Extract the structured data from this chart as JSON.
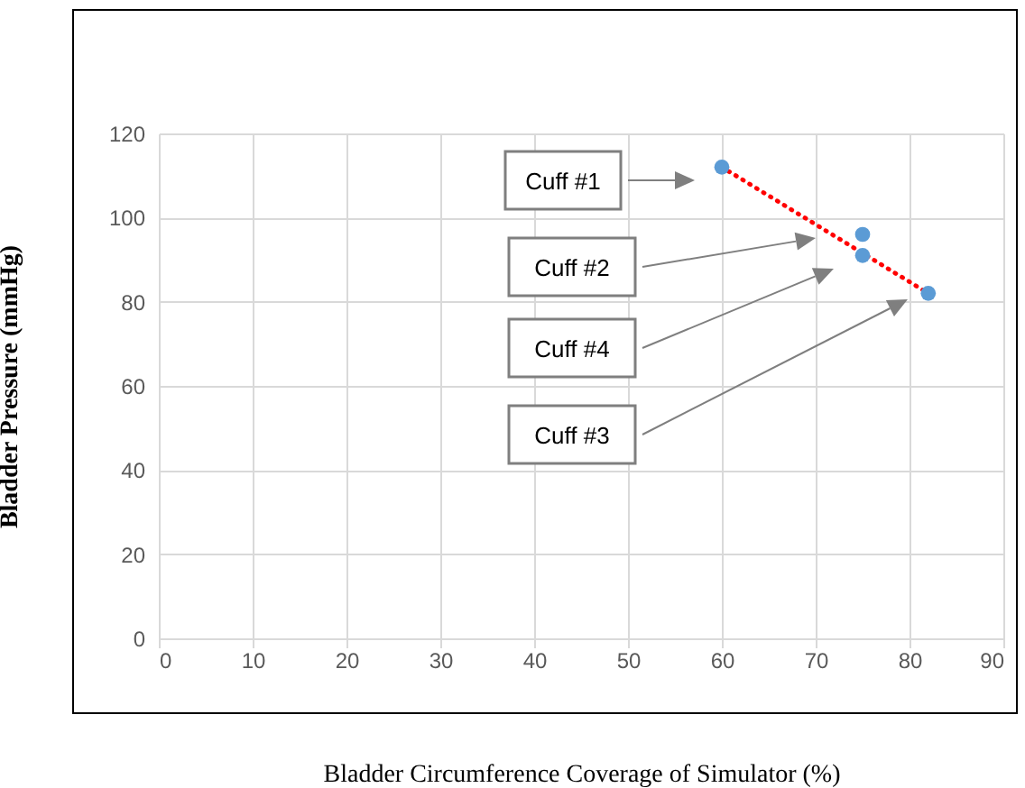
{
  "chart_data": {
    "type": "scatter",
    "xlabel": "Bladder Circumference Coverage of Simulator (%)",
    "ylabel": "Bladder Pressure (mmHg)",
    "xlim": [
      0,
      90
    ],
    "xticks": [
      0,
      10,
      20,
      30,
      40,
      50,
      60,
      70,
      80,
      90
    ],
    "ylim": [
      0,
      120
    ],
    "yticks": [
      0,
      20,
      40,
      60,
      80,
      100,
      120
    ],
    "grid": true,
    "series": [
      {
        "marker": "circle",
        "color": "#5b9bd5",
        "x": [
          60,
          75,
          75,
          82
        ],
        "values": [
          112,
          96,
          91,
          82
        ]
      },
      {
        "type": "line",
        "color": "#ff0000",
        "line_style": "dotted",
        "x": [
          60,
          82
        ],
        "values": [
          112,
          82
        ]
      }
    ],
    "annotations": [
      "Cuff #1",
      "Cuff #2",
      "Cuff #4",
      "Cuff #3"
    ]
  }
}
